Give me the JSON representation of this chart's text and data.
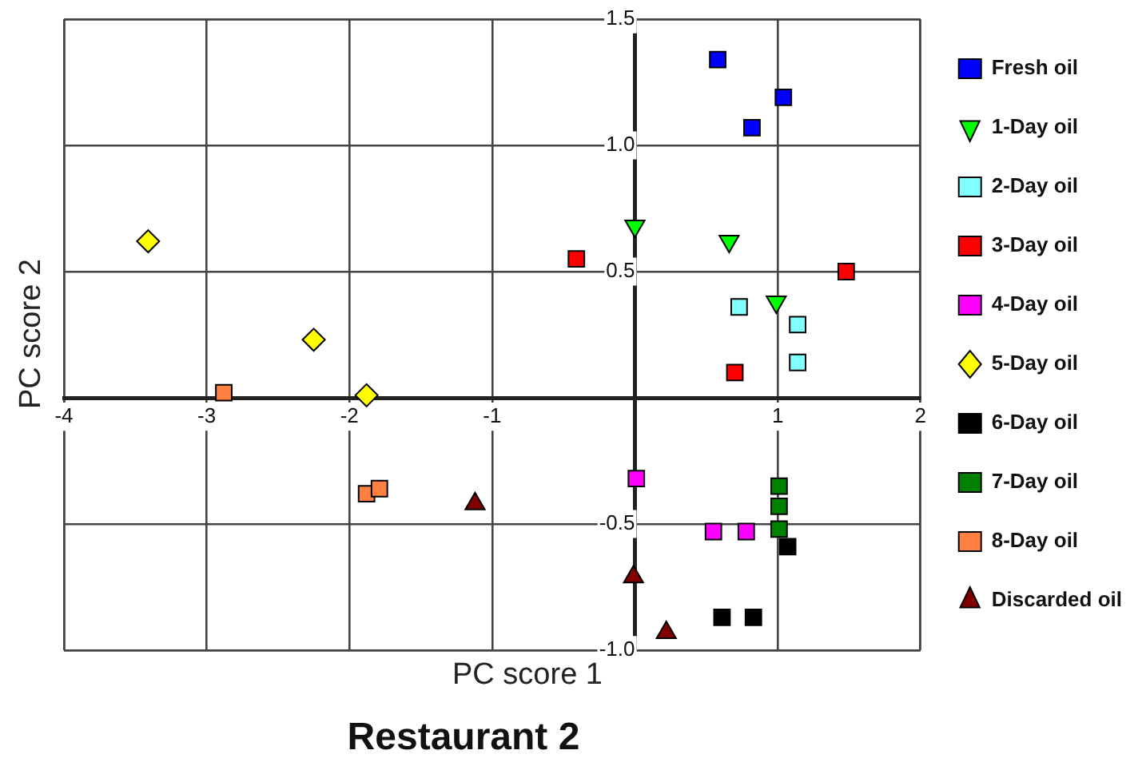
{
  "chart_data": {
    "type": "scatter",
    "title": "Restaurant 2",
    "xlabel": "PC score 1",
    "ylabel": "PC score 2",
    "xlim": [
      -4,
      2
    ],
    "xticks": [
      -4,
      -3,
      -2,
      -1,
      1,
      2
    ],
    "ylim": [
      -1,
      1.5
    ],
    "yticks": [
      {
        "value": -1,
        "label": "-1.0"
      },
      {
        "value": -0.5,
        "label": "-0.5"
      },
      {
        "value": 0.5,
        "label": "0.5"
      },
      {
        "value": 1,
        "label": "1.0"
      },
      {
        "value": 1.5,
        "label": "1.5"
      }
    ],
    "grid": true,
    "legend": "right",
    "series": [
      {
        "name": "Fresh oil",
        "color": "#0000ff",
        "marker": "square",
        "x": [
          0.58,
          1.04,
          0.82
        ],
        "values": [
          1.34,
          1.19,
          1.07
        ]
      },
      {
        "name": "1-Day oil",
        "color": "#00ff00",
        "marker": "triangle-down",
        "x": [
          0,
          0.66,
          0.99
        ],
        "values": [
          0.68,
          0.62,
          0.38
        ]
      },
      {
        "name": "2-Day oil",
        "color": "#80ffff",
        "marker": "square",
        "x": [
          0.73,
          1.14,
          1.14
        ],
        "values": [
          0.36,
          0.29,
          0.14
        ]
      },
      {
        "name": "3-Day oil",
        "color": "#ff0000",
        "marker": "square",
        "x": [
          -0.41,
          1.48,
          0.7
        ],
        "values": [
          0.55,
          0.5,
          0.1
        ]
      },
      {
        "name": "4-Day oil",
        "color": "#ff00ff",
        "marker": "square",
        "x": [
          0.01,
          0.55,
          0.78
        ],
        "values": [
          -0.32,
          -0.53,
          -0.53
        ]
      },
      {
        "name": "5-Day oil",
        "color": "#ffff00",
        "marker": "diamond",
        "x": [
          -3.41,
          -2.25,
          -1.88
        ],
        "values": [
          0.62,
          0.23,
          0.01
        ]
      },
      {
        "name": "6-Day oil",
        "color": "#000000",
        "marker": "square",
        "x": [
          1.07,
          0.61,
          0.83
        ],
        "values": [
          -0.59,
          -0.87,
          -0.87
        ]
      },
      {
        "name": "7-Day oil",
        "color": "#008000",
        "marker": "square",
        "x": [
          1.01,
          1.01,
          1.01
        ],
        "values": [
          -0.35,
          -0.43,
          -0.52
        ]
      },
      {
        "name": "8-Day oil",
        "color": "#ff8040",
        "marker": "square",
        "x": [
          -2.88,
          -1.88,
          -1.79
        ],
        "values": [
          0.02,
          -0.38,
          -0.36
        ]
      },
      {
        "name": "Discarded oil",
        "color": "#800000",
        "marker": "triangle",
        "x": [
          -1.12,
          -0.01,
          0.22
        ],
        "values": [
          -0.42,
          -0.71,
          -0.93
        ]
      }
    ]
  }
}
